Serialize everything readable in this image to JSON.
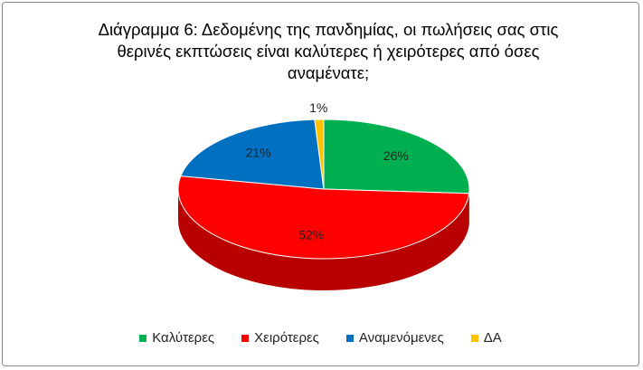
{
  "chart_data": {
    "type": "pie3d",
    "title": "Διάγραμμα 6: Δεδομένης της πανδημίας, οι πωλήσεις σας στις θερινές εκπτώσεις είναι καλύτερες ή χειρότερες από όσες αναμένατε;",
    "categories": [
      "Καλύτερες",
      "Χειρότερες",
      "Αναμενόμενες",
      "ΔΑ"
    ],
    "values": [
      26,
      52,
      21,
      1
    ],
    "value_labels": [
      "26%",
      "52%",
      "21%",
      "1%"
    ],
    "colors": [
      "#00b050",
      "#ff0000",
      "#0070c0",
      "#ffc000"
    ],
    "legend": "bottom"
  }
}
